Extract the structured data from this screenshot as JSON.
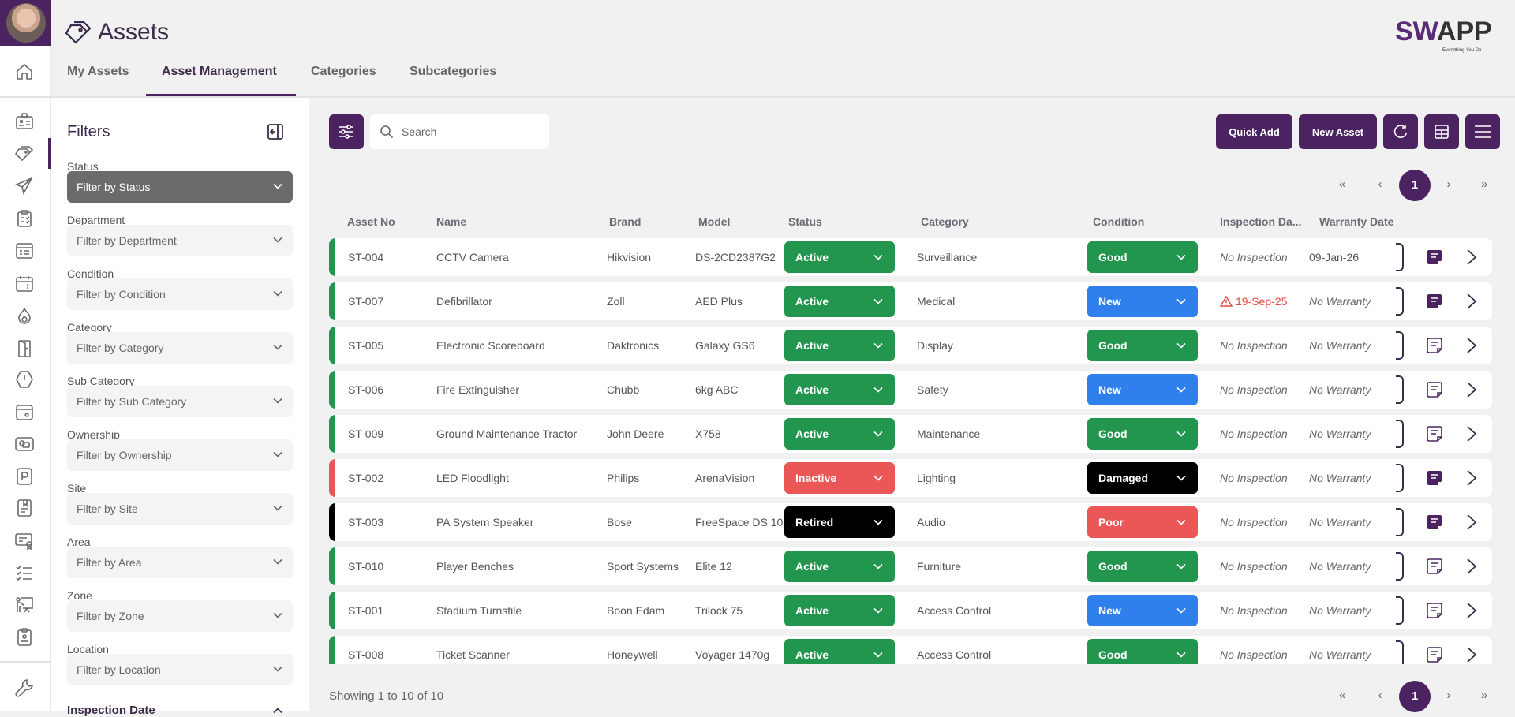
{
  "app": {
    "title": "Assets",
    "logo_text": "SWAPP",
    "logo_tagline": "Everything You Do"
  },
  "tabs": [
    {
      "label": "My Assets"
    },
    {
      "label": "Asset Management",
      "active": true
    },
    {
      "label": "Categories"
    },
    {
      "label": "Subcategories"
    }
  ],
  "sidebar": {
    "icons": [
      "home-icon",
      "id-card-icon",
      "tag-icon",
      "send-icon",
      "clipboard-check-icon",
      "list-card-icon",
      "calendar-icon",
      "flame-icon",
      "door-icon",
      "alert-octagon-icon",
      "safe-icon",
      "photo-icon",
      "parking-icon",
      "document-icon",
      "certificate-icon",
      "checklist-icon",
      "presentation-icon",
      "badge-icon",
      "wrench-icon"
    ],
    "active": "tag-icon"
  },
  "filters": {
    "title": "Filters",
    "items": [
      {
        "label": "Status",
        "placeholder": "Filter by Status",
        "active": true
      },
      {
        "label": "Department",
        "placeholder": "Filter by Department"
      },
      {
        "label": "Condition",
        "placeholder": "Filter by Condition"
      },
      {
        "label": "Category",
        "placeholder": "Filter by Category"
      },
      {
        "label": "Sub Category",
        "placeholder": "Filter by Sub Category"
      },
      {
        "label": "Ownership",
        "placeholder": "Filter by Ownership"
      },
      {
        "label": "Site",
        "placeholder": "Filter by Site"
      },
      {
        "label": "Area",
        "placeholder": "Filter by Area"
      },
      {
        "label": "Zone",
        "placeholder": "Filter by Zone"
      },
      {
        "label": "Location",
        "placeholder": "Filter by Location"
      }
    ],
    "next_section": "Inspection Date"
  },
  "toolbar": {
    "search_placeholder": "Search",
    "quick_add": "Quick Add",
    "new_asset": "New Asset"
  },
  "pagination": {
    "current": "1",
    "first": "«",
    "prev": "‹",
    "next": "›",
    "last": "»"
  },
  "table": {
    "columns": [
      "Asset No",
      "Name",
      "Brand",
      "Model",
      "Status",
      "Category",
      "Condition",
      "Inspection Da...",
      "Warranty Date"
    ],
    "rows": [
      {
        "asset_no": "ST-004",
        "name": "CCTV Camera",
        "brand": "Hikvision",
        "model": "DS-2CD2387G2",
        "status": "Active",
        "category": "Surveillance",
        "condition": "Good",
        "inspection": "No Inspection",
        "warranty": "09-Jan-26",
        "has_notes": true
      },
      {
        "asset_no": "ST-007",
        "name": "Defibrillator",
        "brand": "Zoll",
        "model": "AED Plus",
        "status": "Active",
        "category": "Medical",
        "condition": "New",
        "inspection": "19-Sep-25",
        "inspection_overdue": true,
        "warranty": "No Warranty",
        "has_notes": true
      },
      {
        "asset_no": "ST-005",
        "name": "Electronic Scoreboard",
        "brand": "Daktronics",
        "model": "Galaxy GS6",
        "status": "Active",
        "category": "Display",
        "condition": "Good",
        "inspection": "No Inspection",
        "warranty": "No Warranty",
        "has_notes": false
      },
      {
        "asset_no": "ST-006",
        "name": "Fire Extinguisher",
        "brand": "Chubb",
        "model": "6kg ABC",
        "status": "Active",
        "category": "Safety",
        "condition": "New",
        "inspection": "No Inspection",
        "warranty": "No Warranty",
        "has_notes": false
      },
      {
        "asset_no": "ST-009",
        "name": "Ground Maintenance Tractor",
        "brand": "John Deere",
        "model": "X758",
        "status": "Active",
        "category": "Maintenance",
        "condition": "Good",
        "inspection": "No Inspection",
        "warranty": "No Warranty",
        "has_notes": false
      },
      {
        "asset_no": "ST-002",
        "name": "LED Floodlight",
        "brand": "Philips",
        "model": "ArenaVision",
        "status": "Inactive",
        "category": "Lighting",
        "condition": "Damaged",
        "inspection": "No Inspection",
        "warranty": "No Warranty",
        "has_notes": true
      },
      {
        "asset_no": "ST-003",
        "name": "PA System Speaker",
        "brand": "Bose",
        "model": "FreeSpace DS 10",
        "status": "Retired",
        "category": "Audio",
        "condition": "Poor",
        "inspection": "No Inspection",
        "warranty": "No Warranty",
        "has_notes": true
      },
      {
        "asset_no": "ST-010",
        "name": "Player Benches",
        "brand": "Sport Systems",
        "model": "Elite 12",
        "status": "Active",
        "category": "Furniture",
        "condition": "Good",
        "inspection": "No Inspection",
        "warranty": "No Warranty",
        "has_notes": false
      },
      {
        "asset_no": "ST-001",
        "name": "Stadium Turnstile",
        "brand": "Boon Edam",
        "model": "Trilock 75",
        "status": "Active",
        "category": "Access Control",
        "condition": "New",
        "inspection": "No Inspection",
        "warranty": "No Warranty",
        "has_notes": false
      },
      {
        "asset_no": "ST-008",
        "name": "Ticket Scanner",
        "brand": "Honeywell",
        "model": "Voyager 1470g",
        "status": "Active",
        "category": "Access Control",
        "condition": "Good",
        "inspection": "No Inspection",
        "warranty": "No Warranty",
        "has_notes": false
      }
    ]
  },
  "footer": {
    "showing": "Showing 1 to 10 of 10"
  },
  "colors": {
    "brand": "#4a2360",
    "Active": "#22954f",
    "Inactive": "#eb5757",
    "Retired": "#000000",
    "Good": "#22954f",
    "New": "#2f80ed",
    "Poor": "#eb5757",
    "Damaged": "#000000",
    "overdue": "#e5483e"
  }
}
